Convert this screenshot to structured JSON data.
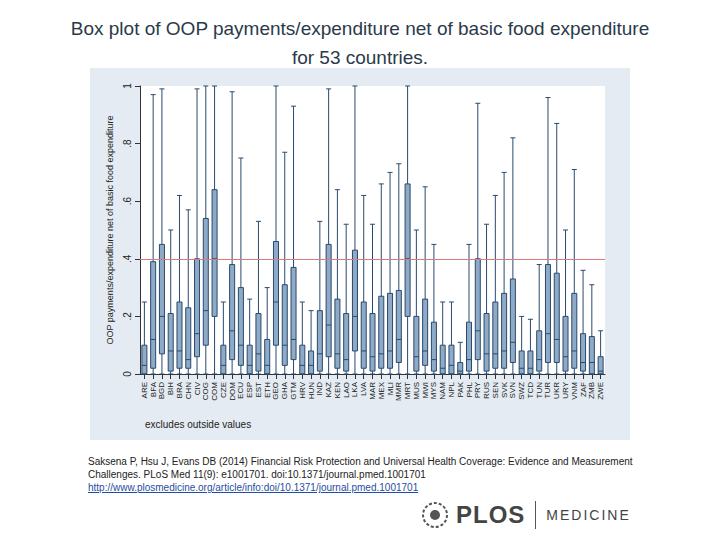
{
  "chart_data": {
    "type": "boxplot",
    "title": "Box plot of OOP payments/expenditure net of basic food expenditure for 53 countries.",
    "ylabel": "OOP payments/expenditure net of basic food expenditure",
    "xlabel": "excludes outside values",
    "categories": [
      "ARE",
      "BFA",
      "BGD",
      "BIH",
      "BRA",
      "CHN",
      "CIV",
      "COG",
      "COM",
      "CZE",
      "DOM",
      "ECU",
      "ESP",
      "EST",
      "ETH",
      "GEO",
      "GHA",
      "GTM",
      "HRV",
      "HUN",
      "IND",
      "KAZ",
      "KEN",
      "LAO",
      "LKA",
      "LVA",
      "MAR",
      "MEX",
      "MLI",
      "MMR",
      "MRT",
      "MUS",
      "MWI",
      "MYS",
      "NAM",
      "NPL",
      "PAK",
      "PHL",
      "PRY",
      "RUS",
      "SEN",
      "SVK",
      "SVN",
      "SWZ",
      "TCD",
      "TUN",
      "TUR",
      "UKR",
      "URY",
      "VNM",
      "ZAF",
      "ZMB",
      "ZWE"
    ],
    "values": [
      [
        0,
        0,
        0.03,
        0.1,
        0.25
      ],
      [
        0,
        0.02,
        0.12,
        0.39,
        0.97
      ],
      [
        0,
        0.07,
        0.2,
        0.45,
        0.99
      ],
      [
        0,
        0.01,
        0.08,
        0.21,
        0.5
      ],
      [
        0,
        0.02,
        0.08,
        0.25,
        0.62
      ],
      [
        0,
        0.02,
        0.05,
        0.23,
        0.57
      ],
      [
        0,
        0.06,
        0.14,
        0.4,
        0.99
      ],
      [
        0,
        0.1,
        0.22,
        0.54,
        1.0
      ],
      [
        0,
        0.2,
        0.4,
        0.64,
        1.0
      ],
      [
        0,
        0,
        0.03,
        0.1,
        0.25
      ],
      [
        0,
        0.05,
        0.15,
        0.38,
        0.98
      ],
      [
        0,
        0.03,
        0.1,
        0.3,
        0.75
      ],
      [
        0,
        0,
        0.03,
        0.1,
        0.26
      ],
      [
        0,
        0.01,
        0.07,
        0.21,
        0.53
      ],
      [
        0,
        0,
        0.03,
        0.12,
        0.3
      ],
      [
        0,
        0.1,
        0.25,
        0.46,
        1.0
      ],
      [
        0,
        0.03,
        0.1,
        0.31,
        0.77
      ],
      [
        0,
        0.05,
        0.12,
        0.37,
        0.93
      ],
      [
        0,
        0,
        0.03,
        0.1,
        0.25
      ],
      [
        0,
        0,
        0.03,
        0.08,
        0.22
      ],
      [
        0,
        0.01,
        0.07,
        0.22,
        0.53
      ],
      [
        0,
        0.06,
        0.17,
        0.45,
        0.99
      ],
      [
        0,
        0.02,
        0.07,
        0.26,
        0.64
      ],
      [
        0,
        0.01,
        0.05,
        0.21,
        0.52
      ],
      [
        0,
        0.08,
        0.2,
        0.43,
        1.0
      ],
      [
        0,
        0.02,
        0.08,
        0.25,
        0.62
      ],
      [
        0,
        0.01,
        0.06,
        0.21,
        0.52
      ],
      [
        0,
        0.02,
        0.07,
        0.27,
        0.66
      ],
      [
        0,
        0.02,
        0.08,
        0.28,
        0.7
      ],
      [
        0,
        0.04,
        0.12,
        0.29,
        0.73
      ],
      [
        0,
        0.2,
        0.4,
        0.66,
        1.0
      ],
      [
        0,
        0.01,
        0.06,
        0.2,
        0.5
      ],
      [
        0,
        0.03,
        0.08,
        0.26,
        0.65
      ],
      [
        0,
        0.01,
        0.05,
        0.18,
        0.45
      ],
      [
        0,
        0,
        0.02,
        0.1,
        0.25
      ],
      [
        0,
        0,
        0.03,
        0.1,
        0.25
      ],
      [
        0,
        0,
        0.01,
        0.04,
        0.11
      ],
      [
        0,
        0.01,
        0.05,
        0.18,
        0.45
      ],
      [
        0,
        0.05,
        0.15,
        0.4,
        0.94
      ],
      [
        0,
        0.01,
        0.07,
        0.21,
        0.52
      ],
      [
        0,
        0.02,
        0.07,
        0.25,
        0.62
      ],
      [
        0,
        0.02,
        0.08,
        0.28,
        0.7
      ],
      [
        0,
        0.04,
        0.11,
        0.33,
        0.82
      ],
      [
        0,
        0,
        0.02,
        0.08,
        0.2
      ],
      [
        0,
        0,
        0.02,
        0.08,
        0.19
      ],
      [
        0,
        0.01,
        0.05,
        0.15,
        0.38
      ],
      [
        0,
        0.04,
        0.14,
        0.38,
        0.96
      ],
      [
        0,
        0.04,
        0.12,
        0.35,
        0.87
      ],
      [
        0,
        0.01,
        0.06,
        0.2,
        0.5
      ],
      [
        0,
        0.02,
        0.08,
        0.28,
        0.71
      ],
      [
        0,
        0.01,
        0.04,
        0.14,
        0.36
      ],
      [
        0,
        0,
        0.04,
        0.13,
        0.31
      ],
      [
        0,
        0,
        0.01,
        0.06,
        0.15
      ]
    ],
    "color": "#8eaac6",
    "reference_line": {
      "value": 0.4,
      "color": "#e07a7a"
    },
    "ylim": [
      0,
      1
    ],
    "yticks": [
      0,
      {
        "value": 0.2,
        "label": ".2"
      },
      {
        "value": 0.4,
        "label": ".4"
      },
      {
        "value": 0.6,
        "label": ".6"
      },
      {
        "value": 0.8,
        "label": ".8"
      },
      1
    ],
    "grid": false,
    "source": [
      "Saksena P, Hsu J, Evans DB (2014) Financial Risk Protection and Universal Health Coverage: Evidence and Measurement",
      "Challenges. PLoS Med 11(9): e1001701. doi:10.1371/journal.pmed.1001701"
    ],
    "url": "http://www.plosmedicine.org/article/info:doi/10.1371/journal.pmed.1001701",
    "logo": [
      "PLOS",
      "MEDICINE"
    ]
  }
}
